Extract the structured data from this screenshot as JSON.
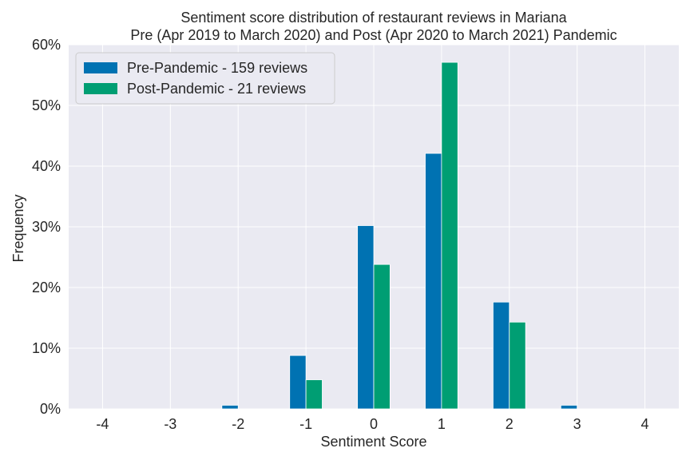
{
  "chart_data": {
    "type": "bar",
    "title": "Sentiment score distribution of restaurant reviews in Mariana",
    "subtitle": "Pre (Apr 2019 to March 2020) and Post (Apr 2020 to March 2021) Pandemic",
    "xlabel": "Sentiment Score",
    "ylabel": "Frequency",
    "categories": [
      "-4",
      "-3",
      "-2",
      "-1",
      "0",
      "1",
      "2",
      "3",
      "4"
    ],
    "x_values": [
      -4,
      -3,
      -2,
      -1,
      0,
      1,
      2,
      3,
      4
    ],
    "xlim": [
      -4.5,
      4.5
    ],
    "ylim": [
      0,
      0.6
    ],
    "yticks": [
      0,
      0.1,
      0.2,
      0.3,
      0.4,
      0.5,
      0.6
    ],
    "ytick_labels": [
      "0%",
      "10%",
      "20%",
      "30%",
      "40%",
      "50%",
      "60%"
    ],
    "grid": true,
    "legend_position": "top-left",
    "series": [
      {
        "name": "Pre-Pandemic - 159 reviews",
        "color": "#0072b2",
        "values": [
          0,
          0,
          0.006,
          0.088,
          0.302,
          0.421,
          0.176,
          0.006,
          0
        ]
      },
      {
        "name": "Post-Pandemic - 21 reviews",
        "color": "#009e73",
        "values": [
          0,
          0,
          0,
          0.048,
          0.238,
          0.571,
          0.143,
          0,
          0
        ]
      }
    ]
  },
  "colors": {
    "plot_background": "#eaeaf2",
    "grid": "#ffffff",
    "text": "#262626"
  }
}
